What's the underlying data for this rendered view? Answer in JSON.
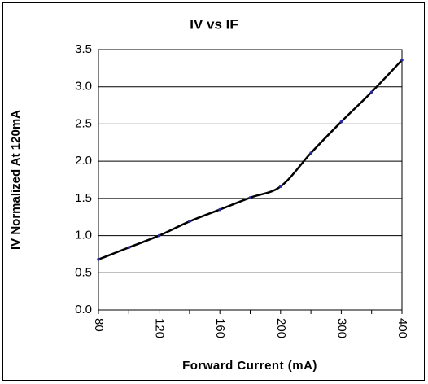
{
  "chart_data": {
    "type": "line",
    "title": "IV vs IF",
    "x_label": "Forward Current (mA)",
    "y_label": "IV Normalized At 120mA",
    "categories": [
      "80",
      null,
      "120",
      null,
      "160",
      null,
      "200",
      null,
      "300",
      null,
      "400"
    ],
    "values": [
      0.68,
      0.84,
      1.0,
      1.19,
      1.35,
      1.51,
      1.66,
      2.11,
      2.53,
      2.93,
      3.36
    ],
    "color": "#000000",
    "marker_color": "#2a2aa0",
    "ylim": [
      0,
      3.5
    ],
    "yticks": [
      {
        "value": 0,
        "label": "0.0"
      },
      0.5,
      {
        "value": 1,
        "label": "1.0"
      },
      1.5,
      {
        "value": 2,
        "label": "2.0"
      },
      2.5,
      {
        "value": 3,
        "label": "3.0"
      },
      3.5
    ],
    "grid": true
  }
}
